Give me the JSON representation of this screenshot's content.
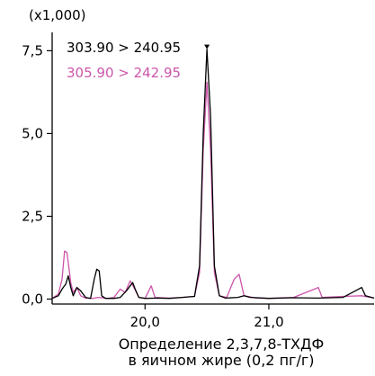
{
  "chart_data": {
    "type": "line",
    "y_multiplier_label": "(x1,000)",
    "title": "",
    "caption_lines": [
      "Определение 2,3,7,8-ТХДФ",
      "в яичном жире (0,2 пг/г)"
    ],
    "xlabel": "",
    "ylabel": "",
    "xlim": [
      19.25,
      21.85
    ],
    "ylim": [
      -0.15,
      8.0
    ],
    "x_ticks": [
      {
        "value": 20.0,
        "label": "20,0"
      },
      {
        "value": 21.0,
        "label": "21,0"
      }
    ],
    "y_ticks": [
      {
        "value": 0.0,
        "label": "0,0"
      },
      {
        "value": 2.5,
        "label": "2,5"
      },
      {
        "value": 5.0,
        "label": "5,0"
      },
      {
        "value": 7.5,
        "label": "7,5"
      }
    ],
    "grid": false,
    "legend_position": "top-left",
    "series": [
      {
        "name": "303.90 > 240.95",
        "color": "#000000",
        "peak_marker_x": 20.5,
        "points": [
          [
            19.25,
            0.02
          ],
          [
            19.3,
            0.1
          ],
          [
            19.33,
            0.3
          ],
          [
            19.36,
            0.45
          ],
          [
            19.38,
            0.7
          ],
          [
            19.4,
            0.35
          ],
          [
            19.42,
            0.1
          ],
          [
            19.45,
            0.35
          ],
          [
            19.48,
            0.25
          ],
          [
            19.52,
            0.05
          ],
          [
            19.56,
            0.02
          ],
          [
            19.59,
            0.6
          ],
          [
            19.61,
            0.9
          ],
          [
            19.63,
            0.85
          ],
          [
            19.65,
            0.1
          ],
          [
            19.68,
            0.02
          ],
          [
            19.75,
            0.02
          ],
          [
            19.8,
            0.05
          ],
          [
            19.85,
            0.25
          ],
          [
            19.88,
            0.4
          ],
          [
            19.9,
            0.5
          ],
          [
            19.92,
            0.3
          ],
          [
            19.95,
            0.05
          ],
          [
            20.0,
            0.02
          ],
          [
            20.1,
            0.03
          ],
          [
            20.2,
            0.02
          ],
          [
            20.3,
            0.05
          ],
          [
            20.4,
            0.08
          ],
          [
            20.44,
            1.0
          ],
          [
            20.47,
            5.0
          ],
          [
            20.5,
            7.55
          ],
          [
            20.53,
            5.5
          ],
          [
            20.56,
            1.0
          ],
          [
            20.6,
            0.1
          ],
          [
            20.65,
            0.03
          ],
          [
            20.75,
            0.05
          ],
          [
            20.8,
            0.1
          ],
          [
            20.85,
            0.05
          ],
          [
            21.0,
            0.02
          ],
          [
            21.2,
            0.04
          ],
          [
            21.4,
            0.03
          ],
          [
            21.6,
            0.05
          ],
          [
            21.75,
            0.35
          ],
          [
            21.78,
            0.1
          ],
          [
            21.85,
            0.03
          ]
        ]
      },
      {
        "name": "305.90 > 242.95",
        "color": "#cc55aa",
        "points": [
          [
            19.25,
            0.02
          ],
          [
            19.3,
            0.15
          ],
          [
            19.33,
            0.6
          ],
          [
            19.35,
            1.45
          ],
          [
            19.37,
            1.4
          ],
          [
            19.4,
            0.5
          ],
          [
            19.42,
            0.2
          ],
          [
            19.45,
            0.35
          ],
          [
            19.48,
            0.1
          ],
          [
            19.52,
            0.03
          ],
          [
            19.58,
            0.02
          ],
          [
            19.62,
            0.05
          ],
          [
            19.7,
            0.02
          ],
          [
            19.75,
            0.05
          ],
          [
            19.8,
            0.3
          ],
          [
            19.84,
            0.2
          ],
          [
            19.88,
            0.55
          ],
          [
            19.91,
            0.35
          ],
          [
            19.95,
            0.05
          ],
          [
            20.0,
            0.02
          ],
          [
            20.05,
            0.4
          ],
          [
            20.08,
            0.05
          ],
          [
            20.2,
            0.03
          ],
          [
            20.3,
            0.05
          ],
          [
            20.4,
            0.08
          ],
          [
            20.44,
            0.8
          ],
          [
            20.47,
            4.5
          ],
          [
            20.5,
            6.55
          ],
          [
            20.53,
            4.5
          ],
          [
            20.56,
            0.8
          ],
          [
            20.6,
            0.1
          ],
          [
            20.66,
            0.05
          ],
          [
            20.72,
            0.6
          ],
          [
            20.76,
            0.75
          ],
          [
            20.8,
            0.1
          ],
          [
            20.9,
            0.03
          ],
          [
            21.0,
            0.02
          ],
          [
            21.2,
            0.05
          ],
          [
            21.4,
            0.35
          ],
          [
            21.43,
            0.05
          ],
          [
            21.6,
            0.08
          ],
          [
            21.75,
            0.1
          ],
          [
            21.85,
            0.03
          ]
        ]
      }
    ]
  }
}
